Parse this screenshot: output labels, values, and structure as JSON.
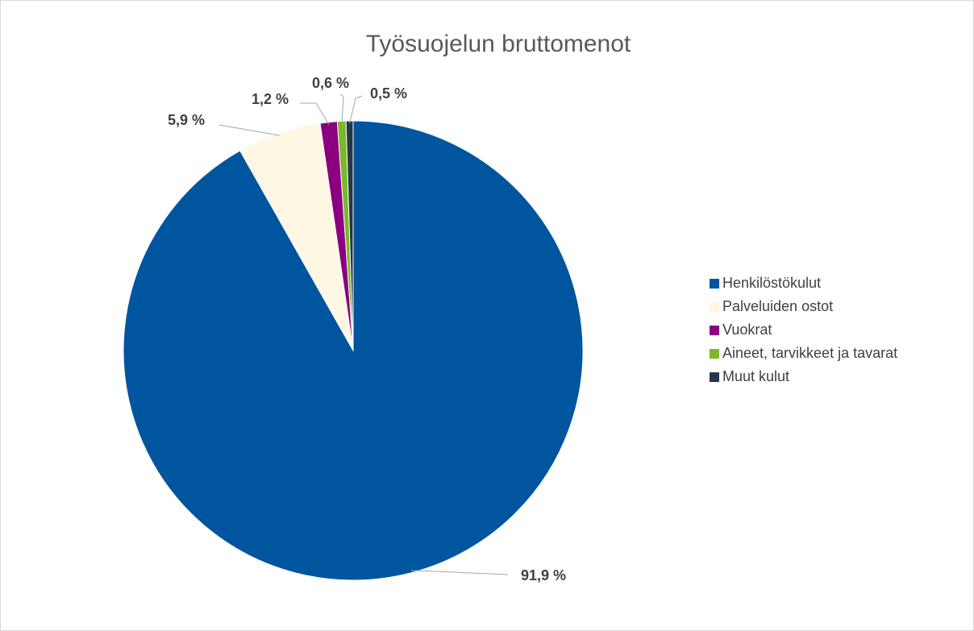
{
  "chart_data": {
    "type": "pie",
    "title": "Työsuojelun bruttomenot",
    "categories": [
      "Henkilöstökulut",
      "Palveluiden ostot",
      "Vuokrat",
      "Aineet, tarvikkeet ja tavarat",
      "Muut kulut"
    ],
    "values": [
      91.9,
      5.9,
      1.2,
      0.6,
      0.5
    ],
    "value_labels": [
      "91,9 %",
      "5,9 %",
      "1,2 %",
      "0,6 %",
      "0,5 %"
    ],
    "colors": [
      "#00559f",
      "#fef7e3",
      "#8a0080",
      "#7ab929",
      "#253746"
    ],
    "legend": "right"
  }
}
